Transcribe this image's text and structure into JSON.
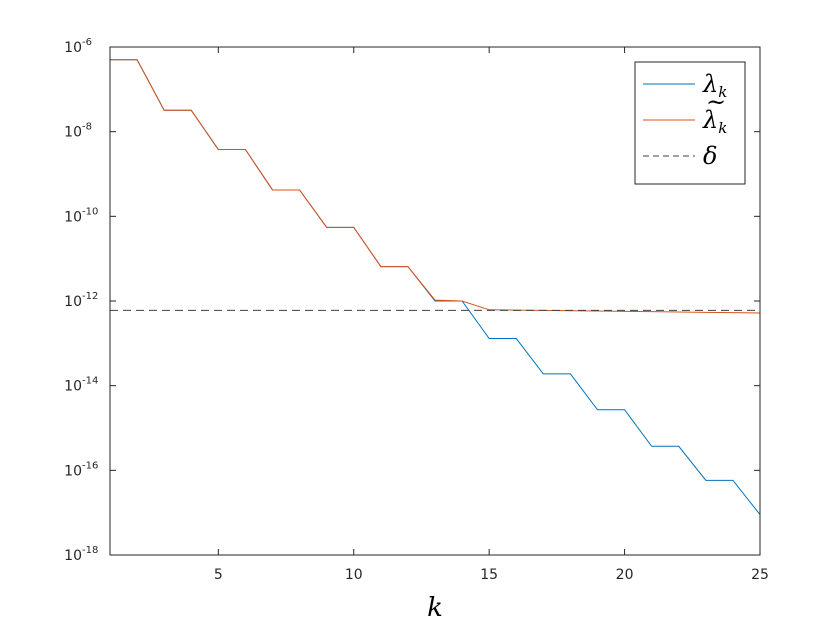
{
  "chart_data": {
    "type": "line",
    "title": "",
    "xlabel": "k",
    "ylabel": "",
    "xlim": [
      1,
      25
    ],
    "ylim": [
      1e-18,
      1e-06
    ],
    "y_scale": "log",
    "grid": false,
    "legend_position": "top-right",
    "x_ticks": [
      5,
      10,
      15,
      20,
      25
    ],
    "y_ticks": [
      {
        "mantissa": "10",
        "exponent": "-18",
        "value": 1e-18
      },
      {
        "mantissa": "10",
        "exponent": "-16",
        "value": 1e-16
      },
      {
        "mantissa": "10",
        "exponent": "-14",
        "value": 1e-14
      },
      {
        "mantissa": "10",
        "exponent": "-12",
        "value": 1e-12
      },
      {
        "mantissa": "10",
        "exponent": "-10",
        "value": 1e-10
      },
      {
        "mantissa": "10",
        "exponent": "-8",
        "value": 1e-08
      },
      {
        "mantissa": "10",
        "exponent": "-6",
        "value": 1e-06
      }
    ],
    "series": [
      {
        "name": "λk",
        "legend_base": "λ",
        "legend_subscript": "k",
        "legend_tilde": false,
        "color": "#0072BD",
        "dash": "solid",
        "x": [
          1,
          2,
          3,
          4,
          5,
          6,
          7,
          8,
          9,
          10,
          11,
          12,
          13,
          14,
          15,
          16,
          17,
          18,
          19,
          20,
          21,
          22,
          23,
          24,
          25
        ],
        "y": [
          5e-07,
          5e-07,
          3.2e-08,
          3.2e-08,
          3.8e-09,
          3.8e-09,
          4.2e-10,
          4.2e-10,
          5.5e-11,
          5.5e-11,
          6.5e-12,
          6.5e-12,
          1e-12,
          1e-12,
          1.3e-13,
          1.3e-13,
          1.9e-14,
          1.9e-14,
          2.7e-15,
          2.7e-15,
          3.7e-16,
          3.7e-16,
          5.8e-17,
          5.8e-17,
          9e-18
        ]
      },
      {
        "name": "λ̃k",
        "legend_base": "λ",
        "legend_subscript": "k",
        "legend_tilde": true,
        "color": "#D95319",
        "dash": "solid",
        "x": [
          1,
          2,
          3,
          4,
          5,
          6,
          7,
          8,
          9,
          10,
          11,
          12,
          13,
          14,
          15,
          16,
          17,
          18,
          19,
          20,
          21,
          22,
          23,
          24,
          25
        ],
        "y": [
          5e-07,
          5e-07,
          3.2e-08,
          3.2e-08,
          3.8e-09,
          3.8e-09,
          4.2e-10,
          4.2e-10,
          5.5e-11,
          5.5e-11,
          6.5e-12,
          6.5e-12,
          1.05e-12,
          1e-12,
          6.2e-13,
          6.1e-13,
          6e-13,
          5.9e-13,
          5.8e-13,
          5.7e-13,
          5.6e-13,
          5.5e-13,
          5.4e-13,
          5.3e-13,
          5.2e-13
        ]
      },
      {
        "name": "δ",
        "legend_base": "δ",
        "legend_subscript": "",
        "legend_tilde": false,
        "color": "#404040",
        "dash": "dashed",
        "x": [
          1,
          25
        ],
        "y": [
          6e-13,
          6e-13
        ]
      }
    ]
  }
}
